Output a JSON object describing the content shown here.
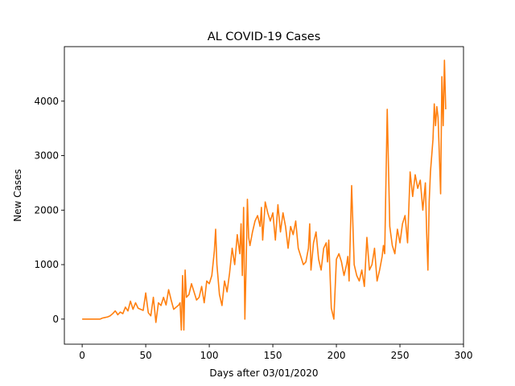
{
  "chart_data": {
    "type": "line",
    "title": "AL COVID-19 Cases",
    "xlabel": "Days after 03/01/2020",
    "ylabel": "New Cases",
    "xlim": [
      -14,
      300
    ],
    "ylim": [
      -460,
      5000
    ],
    "xticks": [
      0,
      50,
      100,
      150,
      200,
      250,
      300
    ],
    "yticks": [
      0,
      1000,
      2000,
      3000,
      4000
    ],
    "grid": false,
    "legend": "none",
    "series": [
      {
        "color": "#ff7f0e",
        "x": [
          0,
          5,
          10,
          14,
          16,
          18,
          20,
          22,
          24,
          26,
          27,
          28,
          30,
          32,
          34,
          36,
          38,
          40,
          42,
          44,
          46,
          48,
          50,
          52,
          54,
          56,
          58,
          60,
          62,
          64,
          66,
          68,
          70,
          72,
          74,
          76,
          77,
          78,
          79,
          80,
          81,
          82,
          84,
          86,
          88,
          90,
          92,
          94,
          96,
          98,
          100,
          102,
          104,
          105,
          106,
          108,
          110,
          112,
          114,
          116,
          118,
          120,
          122,
          124,
          125,
          126,
          127,
          128,
          129,
          130,
          131,
          132,
          134,
          136,
          138,
          140,
          141,
          142,
          144,
          146,
          148,
          150,
          152,
          154,
          156,
          158,
          160,
          162,
          164,
          166,
          168,
          170,
          172,
          174,
          176,
          178,
          179,
          180,
          182,
          184,
          186,
          188,
          190,
          192,
          193,
          194,
          196,
          198,
          200,
          202,
          204,
          206,
          208,
          209,
          210,
          212,
          214,
          216,
          218,
          220,
          222,
          224,
          226,
          228,
          230,
          232,
          234,
          236,
          237,
          238,
          240,
          242,
          244,
          246,
          248,
          250,
          252,
          254,
          256,
          258,
          260,
          262,
          264,
          266,
          268,
          270,
          271,
          272,
          273,
          274,
          276,
          277,
          278,
          279,
          280,
          282,
          283,
          284,
          285,
          286
        ],
        "y": [
          0,
          0,
          0,
          0,
          20,
          30,
          40,
          60,
          100,
          150,
          120,
          80,
          130,
          100,
          220,
          150,
          330,
          180,
          300,
          200,
          180,
          160,
          480,
          120,
          60,
          400,
          -60,
          300,
          250,
          400,
          260,
          540,
          350,
          180,
          220,
          260,
          300,
          -200,
          800,
          -200,
          900,
          400,
          450,
          650,
          500,
          350,
          400,
          600,
          300,
          700,
          650,
          800,
          1250,
          1650,
          1000,
          450,
          250,
          700,
          500,
          850,
          1300,
          1000,
          1550,
          1200,
          1750,
          800,
          2050,
          0,
          1000,
          2200,
          1500,
          1350,
          1600,
          1800,
          1900,
          1700,
          2050,
          1450,
          2150,
          1950,
          1800,
          1950,
          1450,
          2100,
          1600,
          1950,
          1700,
          1300,
          1700,
          1550,
          1800,
          1300,
          1150,
          1000,
          1050,
          1300,
          1750,
          900,
          1400,
          1600,
          1100,
          900,
          1300,
          1400,
          1050,
          1450,
          200,
          0,
          1100,
          1200,
          1050,
          800,
          1000,
          1150,
          700,
          2450,
          1000,
          800,
          700,
          900,
          600,
          1500,
          900,
          1000,
          1300,
          700,
          900,
          1150,
          1350,
          1200,
          3850,
          1700,
          1350,
          1200,
          1650,
          1400,
          1750,
          1900,
          1400,
          2700,
          2250,
          2650,
          2400,
          2550,
          2000,
          2500,
          1600,
          900,
          2150,
          2700,
          3300,
          3950,
          3550,
          3900,
          3700,
          2300,
          4450,
          3550,
          4750,
          3850
        ]
      }
    ]
  }
}
